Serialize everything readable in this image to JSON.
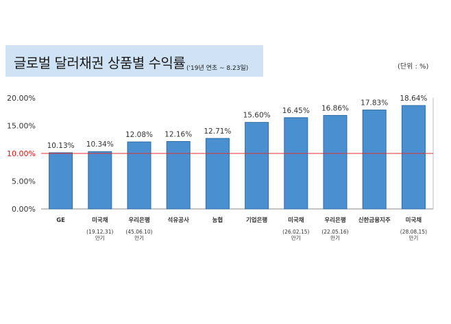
{
  "title": "글로벌 달러채권 상품별 수익률",
  "subtitle": "('19년 연초 ~ 8.23일)",
  "unit": "(단위 : %)",
  "colors": {
    "bar": "#4a90d0",
    "bar_stroke": "#2e6da4",
    "reference_line": "#e03030",
    "reference_tick": "#dd1111",
    "title_background": "#cfe3f5"
  },
  "chart_data": {
    "type": "bar",
    "title": "글로벌 달러채권 상품별 수익률",
    "categories": [
      "GE",
      "미국채",
      "우리은행",
      "석유공사",
      "농협",
      "기업은행",
      "미국채",
      "우리은행",
      "신한금융지주",
      "미국채"
    ],
    "category_notes": [
      [],
      [
        "(19.12.31)",
        "만기"
      ],
      [
        "(45.06.10)",
        "만기"
      ],
      [],
      [],
      [],
      [
        "(26.02.15)",
        "만기"
      ],
      [
        "(22.05.16)",
        "만기"
      ],
      [],
      [
        "(28.08.15)",
        "만기"
      ]
    ],
    "values": [
      10.13,
      10.34,
      12.08,
      12.16,
      12.71,
      15.6,
      16.45,
      16.86,
      17.83,
      18.64
    ],
    "value_labels": [
      "10.13%",
      "10.34%",
      "12.08%",
      "12.16%",
      "12.71%",
      "15.60%",
      "16.45%",
      "16.86%",
      "17.83%",
      "18.64%"
    ],
    "yticks": [
      0,
      5,
      10,
      15,
      20
    ],
    "ytick_labels": [
      "0.00%",
      "5.00%",
      "10.00%",
      "15.00%",
      "20.00%"
    ],
    "reference_line": 10,
    "ylim": [
      0,
      20
    ],
    "xlabel": "",
    "ylabel": "",
    "grid": false,
    "legend": "none"
  }
}
